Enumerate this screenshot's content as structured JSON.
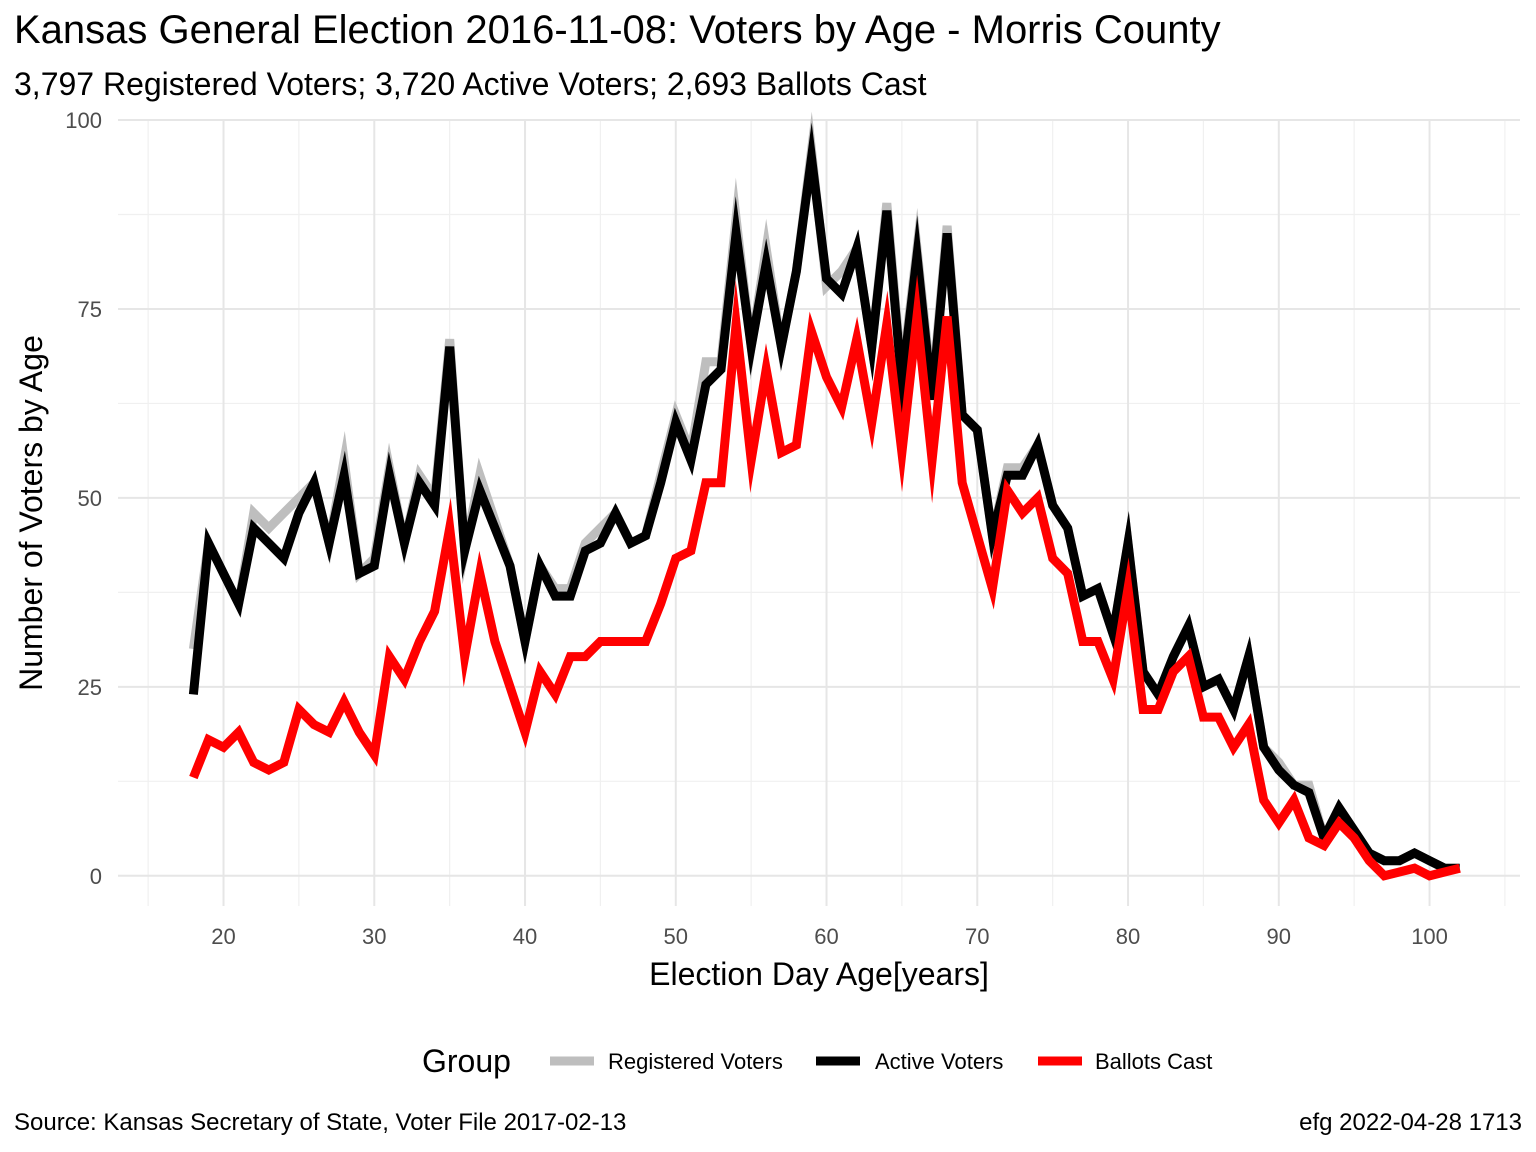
{
  "title": "Kansas General Election 2016-11-08:  Voters by Age - Morris County",
  "subtitle": "3,797 Registered Voters; 3,720 Active Voters; 2,693 Ballots Cast",
  "footer": {
    "source": "Source:  Kansas Secretary of State, Voter File  2017-02-13",
    "credit": "efg 2022-04-28 1713"
  },
  "chart_data": {
    "type": "line",
    "xlabel": "Election Day Age[years]",
    "ylabel": "Number of Voters by Age",
    "xlim": [
      13,
      106
    ],
    "ylim": [
      -4,
      100
    ],
    "xticks": [
      20,
      30,
      40,
      50,
      60,
      70,
      80,
      90,
      100
    ],
    "yticks": [
      0,
      25,
      50,
      75,
      100
    ],
    "grid": true,
    "legend": {
      "title": "Group",
      "position": "bottom"
    },
    "x": [
      18,
      19,
      20,
      21,
      22,
      23,
      24,
      25,
      26,
      27,
      28,
      29,
      30,
      31,
      32,
      33,
      34,
      35,
      36,
      37,
      38,
      39,
      40,
      41,
      42,
      43,
      44,
      45,
      46,
      47,
      48,
      49,
      50,
      51,
      52,
      53,
      54,
      55,
      56,
      57,
      58,
      59,
      60,
      61,
      62,
      63,
      64,
      65,
      66,
      67,
      68,
      69,
      70,
      71,
      72,
      73,
      74,
      75,
      76,
      77,
      78,
      79,
      80,
      81,
      82,
      83,
      84,
      85,
      86,
      87,
      88,
      89,
      90,
      91,
      92,
      93,
      94,
      95,
      96,
      97,
      98,
      99,
      100,
      101,
      102
    ],
    "series": [
      {
        "name": "Registered Voters",
        "color": "#bebebe",
        "values": [
          30,
          44,
          40,
          36,
          48,
          46,
          48,
          50,
          52,
          44,
          55,
          40,
          42,
          54,
          44,
          53,
          50,
          71,
          43,
          53,
          47,
          41,
          31,
          41,
          38,
          38,
          44,
          46,
          48,
          44,
          45,
          53,
          61,
          56,
          68,
          68,
          87,
          70,
          83,
          70,
          80,
          96,
          78,
          80,
          83,
          70,
          89,
          66,
          83,
          64,
          86,
          61,
          59,
          45,
          54,
          54,
          57,
          49,
          46,
          37,
          38,
          32,
          44,
          27,
          24,
          29,
          33,
          25,
          26,
          22,
          29,
          17,
          15,
          12,
          12,
          5,
          9,
          6,
          3,
          2,
          2,
          3,
          2,
          1,
          1
        ]
      },
      {
        "name": "Active Voters",
        "color": "#000000",
        "values": [
          24,
          44,
          40,
          36,
          46,
          44,
          42,
          48,
          52,
          44,
          53,
          40,
          41,
          53,
          44,
          52,
          49,
          70,
          43,
          51,
          46,
          41,
          31,
          41,
          37,
          37,
          43,
          44,
          48,
          44,
          45,
          52,
          60,
          55,
          65,
          67,
          85,
          70,
          81,
          70,
          80,
          95,
          79,
          77,
          83,
          70,
          88,
          65,
          82,
          63,
          85,
          61,
          59,
          45,
          53,
          53,
          57,
          49,
          46,
          37,
          38,
          32,
          44,
          27,
          24,
          29,
          33,
          25,
          26,
          22,
          29,
          17,
          14,
          12,
          11,
          5,
          9,
          6,
          3,
          2,
          2,
          3,
          2,
          1,
          1
        ]
      },
      {
        "name": "Ballots Cast",
        "color": "#ff0000",
        "values": [
          13,
          18,
          17,
          19,
          15,
          14,
          15,
          22,
          20,
          19,
          23,
          19,
          16,
          29,
          26,
          31,
          35,
          46,
          29,
          40,
          31,
          25,
          19,
          27,
          24,
          29,
          29,
          31,
          31,
          31,
          31,
          36,
          42,
          43,
          52,
          52,
          73,
          55,
          67,
          56,
          57,
          72,
          66,
          62,
          71,
          60,
          73,
          56,
          74,
          55,
          74,
          52,
          45,
          38,
          51,
          48,
          50,
          42,
          40,
          31,
          31,
          26,
          38,
          22,
          22,
          27,
          29,
          21,
          21,
          17,
          20,
          10,
          7,
          10,
          5,
          4,
          7,
          5,
          2,
          0,
          0.5,
          1,
          0,
          0.5,
          1
        ]
      }
    ]
  }
}
